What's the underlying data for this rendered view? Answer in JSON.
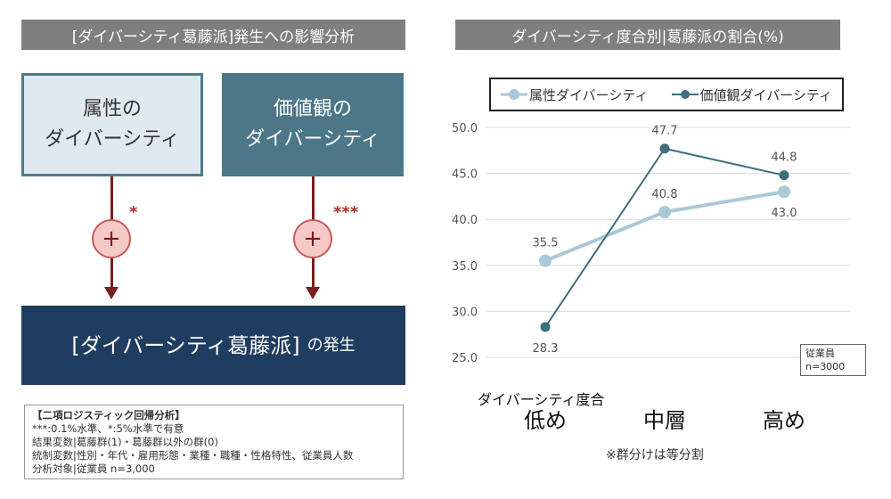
{
  "left": {
    "title": "[ダイバーシティ葛藤派]発生への影響分析",
    "box1": "属性の\nダイバーシティ",
    "box2": "価値観の\nダイバーシティ",
    "plus": "+",
    "sig1": "*",
    "sig2": "***",
    "result_main": "[ダイバーシティ葛藤派]",
    "result_suffix": "の発生",
    "note": [
      "【二項ロジスティック回帰分析】",
      "***:0.1%水準、*:5%水準で有意",
      "結果変数|葛藤群(1)・葛藤群以外の群(0)",
      "統制変数|性別・年代・雇用形態・業種・職種・性格特性、従業員人数",
      "分析対象|従業員 n=3,000"
    ]
  },
  "right": {
    "title": "ダイバーシティ度合別|葛藤派の割合(%)",
    "n_note": "従業員\nn=3000",
    "group_note": "※群分けは等分割"
  },
  "colors": {
    "header": "#7f7f7f",
    "attr": "#a9c9d6",
    "value": "#3e6e7c",
    "box1_fill": "#dfeaee",
    "box2_fill": "#4b7788",
    "result_fill": "#1f3d60",
    "arrow": "#7a1f1f"
  },
  "chart_data": {
    "type": "line",
    "xlabel": "ダイバーシティ度合",
    "categories": [
      "低め",
      "中層",
      "高め"
    ],
    "ylim": [
      25,
      50
    ],
    "yticks": [
      "25.0",
      "30.0",
      "35.0",
      "40.0",
      "45.0",
      "50.0"
    ],
    "grid": true,
    "legend": "top",
    "series": [
      {
        "name": "属性ダイバーシティ",
        "values": [
          35.5,
          40.8,
          43.0
        ],
        "labels": [
          "35.5",
          "40.8",
          "43.0"
        ],
        "color": "#a9c9d6"
      },
      {
        "name": "価値観ダイバーシティ",
        "values": [
          28.3,
          47.7,
          44.8
        ],
        "labels": [
          "28.3",
          "47.7",
          "44.8"
        ],
        "color": "#3e6e7c"
      }
    ]
  }
}
